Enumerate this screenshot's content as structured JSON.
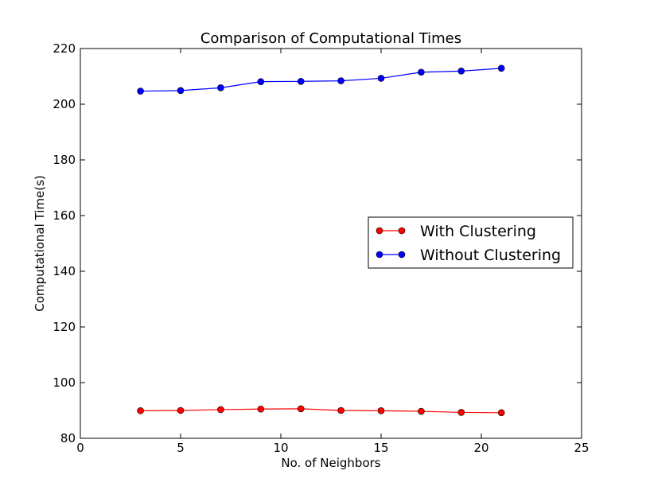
{
  "chart_data": {
    "type": "line",
    "title": "Comparison of Computational Times",
    "xlabel": "No. of Neighbors",
    "ylabel": "Computational Time(s)",
    "xlim": [
      0,
      25
    ],
    "ylim": [
      80,
      220
    ],
    "xticks": [
      0,
      5,
      10,
      15,
      20,
      25
    ],
    "yticks": [
      80,
      100,
      120,
      140,
      160,
      180,
      200,
      220
    ],
    "grid": false,
    "legend_position": "center-right",
    "x": [
      3,
      5,
      7,
      9,
      11,
      13,
      15,
      17,
      19,
      21
    ],
    "series": [
      {
        "name": "With Clustering",
        "color": "#ff0000",
        "values": [
          89.9,
          90.0,
          90.3,
          90.5,
          90.6,
          90.0,
          89.9,
          89.7,
          89.3,
          89.2
        ]
      },
      {
        "name": "Without Clustering",
        "color": "#0000ff",
        "values": [
          204.7,
          204.9,
          205.9,
          208.1,
          208.2,
          208.4,
          209.3,
          211.5,
          211.9,
          212.9
        ]
      }
    ]
  }
}
